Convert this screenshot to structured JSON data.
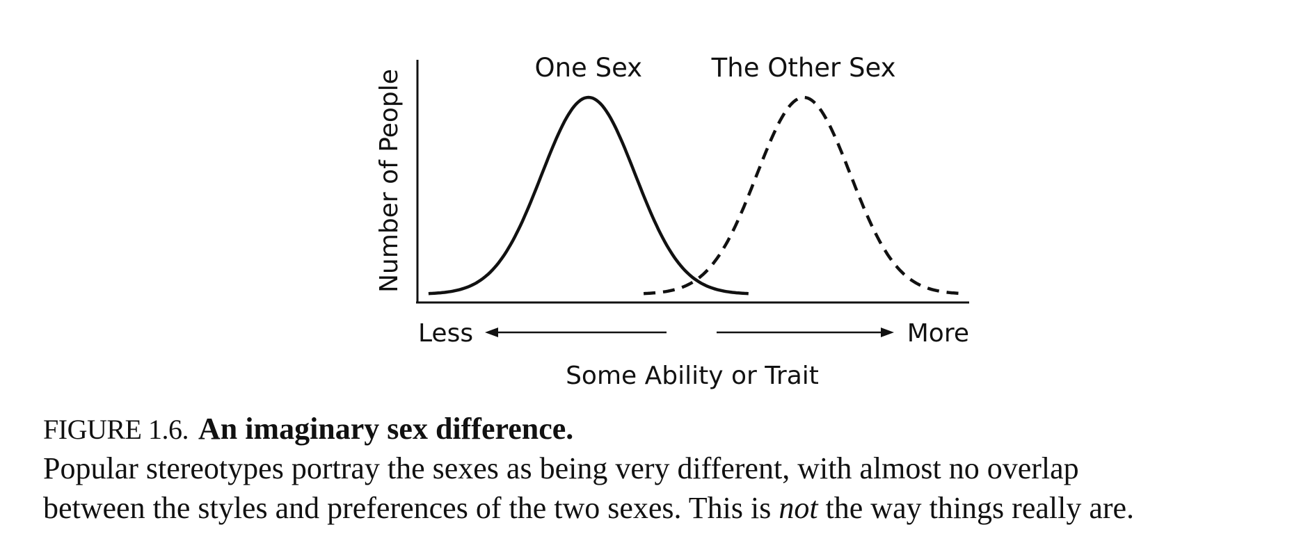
{
  "chart_data": {
    "type": "line",
    "title": "",
    "xlabel": "Some Ability or Trait",
    "ylabel": "Number of People",
    "x_arrow_labels": {
      "left": "Less",
      "right": "More"
    },
    "xlim": [
      0,
      10
    ],
    "ylim": [
      0,
      1
    ],
    "grid": false,
    "legend": "none",
    "series": [
      {
        "name": "One Sex",
        "style": "solid",
        "mean": 3.1,
        "sd": 0.85,
        "x_range": [
          0.2,
          6.0
        ],
        "peak": 1.0
      },
      {
        "name": "The Other Sex",
        "style": "dashed",
        "mean": 7.0,
        "sd": 0.85,
        "x_range": [
          4.1,
          9.9
        ],
        "peak": 1.0
      }
    ]
  },
  "caption": {
    "label": "FIGURE 1.6.",
    "title": "An imaginary sex difference.",
    "body_line1": "Popular stereotypes portray the sexes as being very different, with almost no overlap",
    "body_line2_before": "between the styles and preferences of the two sexes. This is ",
    "body_line2_emph": "not",
    "body_line2_after": " the way things really are."
  }
}
